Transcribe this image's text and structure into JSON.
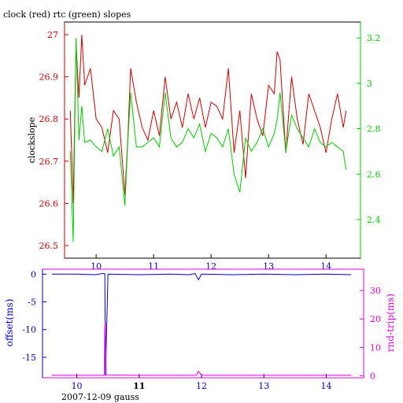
{
  "chart_data": [
    {
      "type": "line",
      "title": "clock (red) rtc (green) slopes",
      "ylabel": "clockslope",
      "xlim": [
        9.45,
        14.6
      ],
      "x_ticks": [
        "10",
        "11",
        "12",
        "13",
        "14"
      ],
      "y_left": {
        "lim": [
          26.47,
          27.03
        ],
        "ticks": [
          "26.5",
          "26.6",
          "26.7",
          "26.8",
          "26.9",
          "27"
        ],
        "color": "#cc0000"
      },
      "y_right": {
        "lim": [
          2.23,
          3.27
        ],
        "ticks": [
          "2.4",
          "2.6",
          "2.8",
          "3",
          "3.2"
        ],
        "color": "#00cc00"
      },
      "series": [
        {
          "color": "#cc0000",
          "axis": "left",
          "x": [
            9.55,
            9.6,
            9.65,
            9.7,
            9.75,
            9.8,
            9.9,
            10.0,
            10.1,
            10.2,
            10.3,
            10.4,
            10.5,
            10.55,
            10.6,
            10.7,
            10.8,
            10.9,
            11.0,
            11.1,
            11.2,
            11.3,
            11.4,
            11.5,
            11.6,
            11.7,
            11.8,
            11.9,
            12.0,
            12.1,
            12.2,
            12.3,
            12.4,
            12.5,
            12.6,
            12.7,
            12.8,
            12.9,
            13.0,
            13.1,
            13.15,
            13.2,
            13.3,
            13.4,
            13.5,
            13.6,
            13.7,
            13.8,
            13.9,
            14.0,
            14.1,
            14.2,
            14.3,
            14.35
          ],
          "values": [
            26.82,
            26.6,
            26.98,
            26.85,
            27.0,
            26.88,
            26.92,
            26.8,
            26.78,
            26.72,
            26.82,
            26.8,
            26.62,
            26.75,
            26.92,
            26.84,
            26.78,
            26.75,
            26.82,
            26.76,
            26.9,
            26.8,
            26.84,
            26.78,
            26.86,
            26.8,
            26.85,
            26.78,
            26.84,
            26.83,
            26.8,
            26.92,
            26.72,
            26.82,
            26.66,
            26.86,
            26.8,
            26.76,
            26.88,
            26.86,
            26.96,
            26.94,
            26.72,
            26.9,
            26.8,
            26.74,
            26.86,
            26.82,
            26.78,
            26.72,
            26.8,
            26.86,
            26.78,
            26.82
          ]
        },
        {
          "color": "#00cc00",
          "axis": "right",
          "x": [
            9.55,
            9.6,
            9.65,
            9.7,
            9.75,
            9.8,
            9.9,
            10.0,
            10.1,
            10.2,
            10.3,
            10.4,
            10.5,
            10.55,
            10.6,
            10.7,
            10.8,
            10.9,
            11.0,
            11.1,
            11.2,
            11.3,
            11.4,
            11.5,
            11.6,
            11.7,
            11.8,
            11.9,
            12.0,
            12.1,
            12.2,
            12.3,
            12.4,
            12.5,
            12.6,
            12.7,
            12.8,
            12.9,
            13.0,
            13.1,
            13.15,
            13.2,
            13.3,
            13.4,
            13.5,
            13.6,
            13.7,
            13.8,
            13.9,
            14.0,
            14.1,
            14.2,
            14.3,
            14.35
          ],
          "values": [
            2.7,
            2.3,
            3.2,
            2.75,
            2.9,
            2.74,
            2.75,
            2.72,
            2.7,
            2.8,
            2.68,
            2.72,
            2.46,
            2.74,
            2.96,
            2.72,
            2.72,
            2.74,
            2.76,
            2.72,
            2.96,
            2.76,
            2.72,
            2.74,
            2.8,
            2.76,
            2.82,
            2.7,
            2.78,
            2.76,
            2.72,
            2.8,
            2.6,
            2.52,
            2.76,
            2.7,
            2.74,
            2.8,
            2.72,
            2.78,
            2.84,
            2.96,
            2.7,
            2.86,
            2.8,
            2.76,
            2.72,
            2.8,
            2.74,
            2.72,
            2.74,
            2.72,
            2.7,
            2.62
          ]
        }
      ]
    },
    {
      "type": "line",
      "ylabel_left": "offset(ms)",
      "ylabel_right": "rnd-trip(ms)",
      "xlabel": "2007-12-09 gauss",
      "xlim": [
        9.45,
        14.6
      ],
      "x_ticks": [
        "10",
        "11",
        "12",
        "13",
        "14"
      ],
      "y_left": {
        "lim": [
          -18.7,
          0.9
        ],
        "ticks": [
          "0",
          "-5",
          "-10",
          "-15"
        ],
        "color": "#0000cc"
      },
      "y_right": {
        "lim": [
          -0.7,
          37.5
        ],
        "ticks": [
          "0",
          "10",
          "20",
          "30"
        ],
        "color": "#e000e0"
      },
      "series": [
        {
          "color": "#0000cc",
          "axis": "left",
          "x": [
            9.6,
            10.0,
            10.3,
            10.4,
            10.45,
            10.46,
            10.5,
            11.0,
            11.5,
            11.8,
            11.9,
            11.92,
            11.95,
            12.0,
            12.5,
            13.0,
            13.5,
            14.0,
            14.4
          ],
          "values": [
            0.0,
            0.0,
            -0.1,
            0.1,
            0.1,
            -18.3,
            0.0,
            -0.1,
            0.0,
            -0.1,
            0.1,
            -0.4,
            -1.0,
            0.0,
            -0.1,
            0.0,
            -0.1,
            0.0,
            -0.1
          ]
        },
        {
          "color": "#e000e0",
          "axis": "right",
          "x": [
            9.6,
            10.0,
            10.3,
            10.44,
            10.45,
            10.46,
            10.47,
            11.0,
            11.5,
            11.9,
            11.92,
            11.95,
            12.0,
            12.5,
            13.0,
            13.5,
            14.0,
            14.4
          ],
          "values": [
            0.2,
            0.2,
            0.2,
            0.2,
            17.5,
            19.0,
            0.3,
            0.2,
            0.2,
            0.2,
            0.2,
            1.6,
            0.2,
            0.2,
            0.2,
            0.2,
            0.2,
            0.2
          ]
        }
      ]
    }
  ]
}
